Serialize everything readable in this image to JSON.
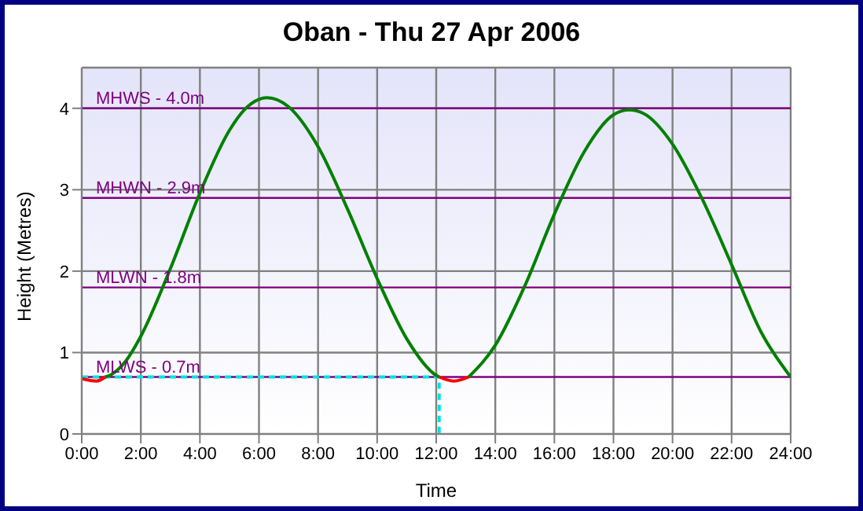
{
  "chart_data": {
    "type": "line",
    "title": "Oban - Thu 27 Apr 2006",
    "xlabel": "Time",
    "ylabel": "Height (Metres)",
    "xlim": [
      0,
      24
    ],
    "xticks": [
      {
        "value": 0,
        "label": "0:00"
      },
      {
        "value": 2,
        "label": "2:00"
      },
      {
        "value": 4,
        "label": "4:00"
      },
      {
        "value": 6,
        "label": "6:00"
      },
      {
        "value": 8,
        "label": "8:00"
      },
      {
        "value": 10,
        "label": "10:00"
      },
      {
        "value": 12,
        "label": "12:00"
      },
      {
        "value": 14,
        "label": "14:00"
      },
      {
        "value": 16,
        "label": "16:00"
      },
      {
        "value": 18,
        "label": "18:00"
      },
      {
        "value": 20,
        "label": "20:00"
      },
      {
        "value": 22,
        "label": "22:00"
      },
      {
        "value": 24,
        "label": "24:00"
      }
    ],
    "ylim": [
      0,
      4.5
    ],
    "yticks": [
      0,
      1,
      2,
      3,
      4
    ],
    "grid": true,
    "marker": "none",
    "series": [
      {
        "color": "#00e0e0",
        "line_style": "dashed",
        "x": [
          0,
          12.1,
          12.1
        ],
        "values": [
          0.7,
          0.7,
          0
        ]
      },
      {
        "color": "#008000",
        "line_style": "solid",
        "x": [
          0.8,
          1,
          1.5,
          2,
          3,
          4,
          5,
          5.5,
          6,
          6.27,
          7,
          8,
          9,
          10,
          11,
          12,
          12.1,
          12.6,
          13.1,
          14,
          15,
          16,
          17,
          18,
          18.53,
          19,
          20,
          21,
          22,
          23,
          24
        ],
        "values": [
          0.7,
          0.73,
          0.9,
          1.2,
          2.03,
          2.96,
          3.73,
          3.98,
          4.11,
          4.13,
          4.02,
          3.53,
          2.76,
          1.91,
          1.17,
          0.72,
          0.7,
          null,
          0.7,
          1.09,
          1.82,
          2.7,
          3.46,
          3.92,
          3.98,
          3.94,
          3.56,
          2.89,
          2.08,
          1.25,
          0.7
        ]
      },
      {
        "color": "#ff0000",
        "line_style": "solid",
        "x": [
          0,
          0.5,
          0.8,
          6,
          12.1,
          12.6,
          13.1
        ],
        "values": [
          0.68,
          0.65,
          0.7,
          null,
          0.7,
          0.65,
          0.7
        ]
      }
    ],
    "ref_lines": [
      {
        "axis": "y",
        "value": 4.0,
        "label": "MHWS - 4.0m",
        "color": "#800080"
      },
      {
        "axis": "y",
        "value": 2.9,
        "label": "MHWN - 2.9m",
        "color": "#800080"
      },
      {
        "axis": "y",
        "value": 1.8,
        "label": "MLWN - 1.8m",
        "color": "#800080"
      },
      {
        "axis": "y",
        "value": 0.7,
        "label": "MLWS - 0.7m",
        "color": "#800080"
      }
    ]
  }
}
